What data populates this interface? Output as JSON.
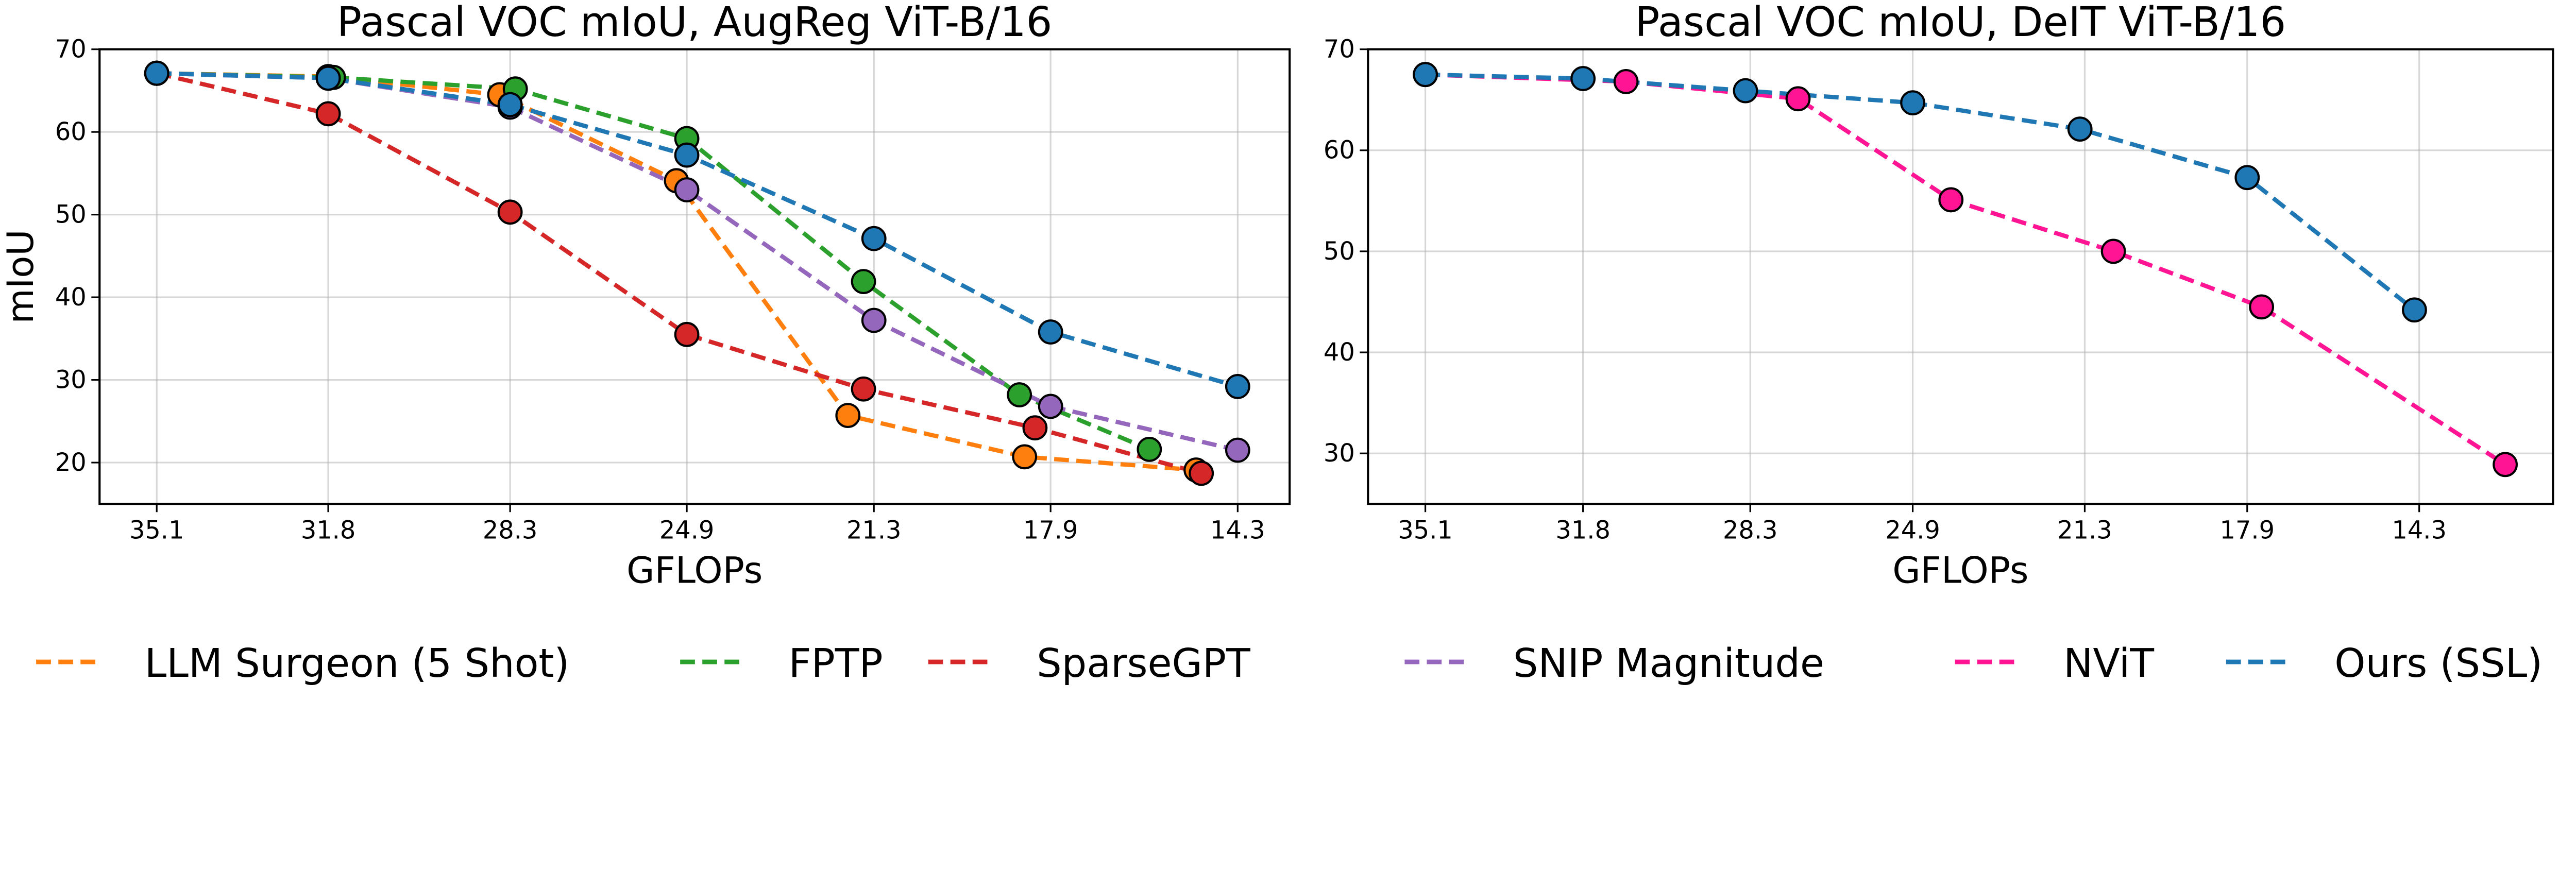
{
  "chart_data": [
    {
      "type": "line",
      "title": "Pascal VOC mIoU, AugReg ViT-B/16",
      "xlabel": "GFLOPs",
      "ylabel": "mIoU",
      "x_ticks": [
        "35.1",
        "31.8",
        "28.3",
        "24.9",
        "21.3",
        "17.9",
        "14.3"
      ],
      "x_tick_values": [
        35.1,
        31.8,
        28.3,
        24.9,
        21.3,
        17.9,
        14.3
      ],
      "y_ticks": [
        20,
        30,
        40,
        50,
        60,
        70
      ],
      "xlim": [
        36.2,
        13.3
      ],
      "ylim": [
        15,
        70
      ],
      "x_reversed": true,
      "grid": true,
      "series": [
        {
          "name": "LLM Surgeon (5 Shot)",
          "color": "#ff7f0e",
          "points": [
            [
              35.1,
              67.1
            ],
            [
              31.8,
              66.7
            ],
            [
              28.5,
              64.5
            ],
            [
              25.1,
              54.1
            ],
            [
              21.8,
              25.7
            ],
            [
              18.4,
              20.7
            ],
            [
              15.1,
              19.1
            ]
          ]
        },
        {
          "name": "FPTP",
          "color": "#2ca02c",
          "points": [
            [
              35.1,
              67.1
            ],
            [
              31.7,
              66.6
            ],
            [
              28.2,
              65.2
            ],
            [
              24.9,
              59.2
            ],
            [
              21.5,
              41.9
            ],
            [
              18.5,
              28.2
            ],
            [
              16.0,
              21.6
            ]
          ]
        },
        {
          "name": "SparseGPT",
          "color": "#d62728",
          "points": [
            [
              35.1,
              67.1
            ],
            [
              31.8,
              62.2
            ],
            [
              28.3,
              50.3
            ],
            [
              24.9,
              35.5
            ],
            [
              21.5,
              28.9
            ],
            [
              18.2,
              24.2
            ],
            [
              15.0,
              18.7
            ]
          ]
        },
        {
          "name": "SNIP Magnitude",
          "color": "#9467bd",
          "points": [
            [
              35.1,
              67.1
            ],
            [
              31.8,
              66.5
            ],
            [
              28.3,
              63.0
            ],
            [
              24.9,
              53.0
            ],
            [
              21.3,
              37.2
            ],
            [
              17.9,
              26.8
            ],
            [
              14.3,
              21.5
            ]
          ]
        },
        {
          "name": "Ours (SSL)",
          "color": "#1f77b4",
          "points": [
            [
              35.1,
              67.1
            ],
            [
              31.8,
              66.5
            ],
            [
              28.3,
              63.3
            ],
            [
              24.9,
              57.2
            ],
            [
              21.3,
              47.1
            ],
            [
              17.9,
              35.8
            ],
            [
              14.3,
              29.2
            ]
          ]
        }
      ]
    },
    {
      "type": "line",
      "title": "Pascal VOC mIoU, DeIT ViT-B/16",
      "xlabel": "GFLOPs",
      "ylabel": "",
      "x_ticks": [
        "35.1",
        "31.8",
        "28.3",
        "24.9",
        "21.3",
        "17.9",
        "14.3"
      ],
      "x_tick_values": [
        35.1,
        31.8,
        28.3,
        24.9,
        21.3,
        17.9,
        14.3
      ],
      "y_ticks": [
        30,
        40,
        50,
        60,
        70
      ],
      "xlim": [
        36.3,
        11.5
      ],
      "ylim": [
        25,
        70
      ],
      "x_reversed": true,
      "grid": true,
      "series": [
        {
          "name": "NViT",
          "color": "#ff1493",
          "points": [
            [
              35.1,
              67.5
            ],
            [
              30.9,
              66.8
            ],
            [
              27.3,
              65.1
            ],
            [
              24.1,
              55.1
            ],
            [
              20.7,
              50.0
            ],
            [
              17.6,
              44.5
            ],
            [
              12.5,
              28.9
            ]
          ]
        },
        {
          "name": "Ours (SSL)",
          "color": "#1f77b4",
          "points": [
            [
              35.1,
              67.5
            ],
            [
              31.8,
              67.1
            ],
            [
              28.4,
              65.9
            ],
            [
              24.9,
              64.7
            ],
            [
              21.4,
              62.1
            ],
            [
              17.9,
              57.3
            ],
            [
              14.4,
              44.2
            ]
          ]
        }
      ]
    }
  ],
  "legend": [
    {
      "label": "LLM Surgeon (5 Shot)",
      "color": "#ff7f0e"
    },
    {
      "label": "FPTP",
      "color": "#2ca02c"
    },
    {
      "label": "SparseGPT",
      "color": "#d62728"
    },
    {
      "label": "SNIP Magnitude",
      "color": "#9467bd"
    },
    {
      "label": "NViT",
      "color": "#ff1493"
    },
    {
      "label": "Ours (SSL)",
      "color": "#1f77b4"
    }
  ]
}
